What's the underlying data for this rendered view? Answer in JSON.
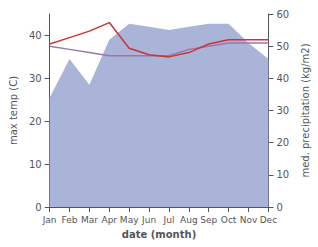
{
  "chart_data": {
    "type": "line",
    "xlabel": "date (month)",
    "ylabel": "max temp (C)",
    "y2label": "med. precipitation (kg/m2)",
    "categories": [
      "Jan",
      "Feb",
      "Mar",
      "Apr",
      "May",
      "Jun",
      "Jul",
      "Aug",
      "Sep",
      "Oct",
      "Nov",
      "Dec"
    ],
    "series": [
      {
        "type": "area",
        "axis": "y2",
        "color": "#aab4d8",
        "values": [
          34,
          46,
          38,
          52,
          57,
          56,
          55,
          56,
          57,
          57,
          51,
          46
        ]
      },
      {
        "type": "line",
        "axis": "y2",
        "color": "#9977aa",
        "values": [
          50,
          49,
          48,
          47,
          47,
          47,
          47,
          49,
          50,
          51,
          51,
          51
        ]
      },
      {
        "type": "line",
        "color": "#cc3333",
        "values": [
          38.0,
          39.5,
          41.0,
          43.0,
          37.0,
          35.5,
          35.0,
          36.0,
          38.0,
          39.0,
          39.0,
          39.0
        ]
      }
    ],
    "ylim": [
      0,
      45
    ],
    "yticks": [
      0,
      10,
      20,
      30,
      40
    ],
    "y2lim": [
      0,
      60
    ],
    "y2ticks": [
      0,
      10,
      20,
      30,
      40,
      50,
      60
    ],
    "grid": false
  }
}
